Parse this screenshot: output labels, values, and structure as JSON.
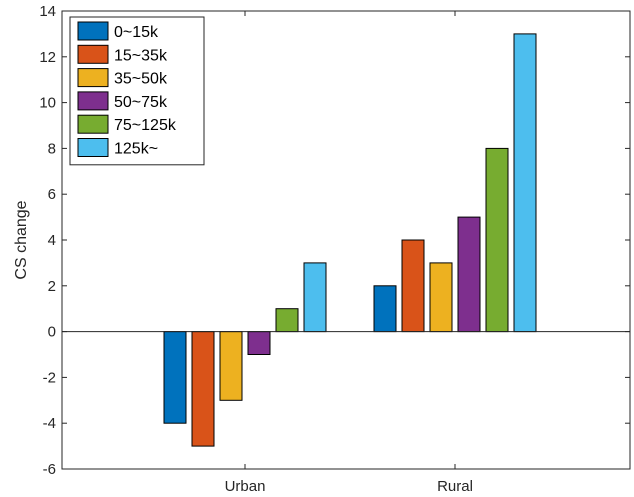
{
  "chart_data": {
    "type": "bar",
    "title": "",
    "xlabel": "",
    "ylabel": "CS change",
    "categories": [
      "Urban",
      "Rural"
    ],
    "ylim": [
      -6,
      14
    ],
    "yticks": [
      "-6",
      "-4",
      "-2",
      "0",
      "2",
      "4",
      "6",
      "8",
      "10",
      "12",
      "14"
    ],
    "grid": false,
    "legend_position": "top-left",
    "series": [
      {
        "name": "0~15k",
        "color": "#0072BD",
        "values": [
          -4,
          2
        ]
      },
      {
        "name": "15~35k",
        "color": "#D95319",
        "values": [
          -5,
          4
        ]
      },
      {
        "name": "35~50k",
        "color": "#EDB120",
        "values": [
          -3,
          3
        ]
      },
      {
        "name": "50~75k",
        "color": "#7E2F8E",
        "values": [
          -1,
          5
        ]
      },
      {
        "name": "75~125k",
        "color": "#77AC30",
        "values": [
          1,
          8
        ]
      },
      {
        "name": "125k~",
        "color": "#4DBEEE",
        "values": [
          3,
          13
        ]
      }
    ]
  }
}
